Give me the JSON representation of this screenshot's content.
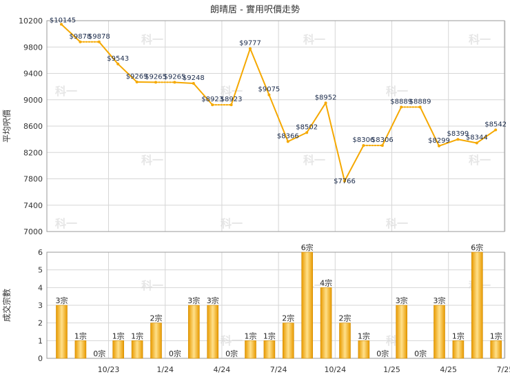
{
  "chart_data": [
    {
      "type": "line",
      "title": "朗晴居 - 實用呎價走勢",
      "ylabel": "平均呎價",
      "ylim": [
        7000,
        10200
      ],
      "yticks": [
        7000,
        7400,
        7800,
        8200,
        8600,
        9000,
        9400,
        9800,
        10200
      ],
      "grid": true,
      "series": [
        {
          "values": [
            10145,
            9878,
            9878,
            9543,
            9269,
            9265,
            9265,
            9248,
            8923,
            8923,
            9777,
            9075,
            8366,
            8502,
            8952,
            7766,
            8306,
            8306,
            8889,
            8889,
            8299,
            8399,
            8344,
            8542
          ],
          "labels": [
            "$10145",
            "$9878",
            "$9878",
            "$9543",
            "$9269",
            "$9265",
            "$9265",
            "$9248",
            "$8923",
            "$8923",
            "$9777",
            "$9075",
            "$8366",
            "$8502",
            "$8952",
            "$7766",
            "$8306",
            "$8306",
            "$8889",
            "$8889",
            "$8299",
            "$8399",
            "$8344",
            "$8542"
          ],
          "color": "#f5a800"
        }
      ]
    },
    {
      "type": "bar",
      "ylabel": "成交宗數",
      "ylim": [
        0,
        6
      ],
      "yticks": [
        0,
        1,
        2,
        3,
        4,
        5,
        6
      ],
      "categories": [
        "10/23",
        "1/24",
        "4/24",
        "7/24",
        "10/24",
        "1/25",
        "4/25",
        "7/25"
      ],
      "values": [
        3,
        1,
        0,
        1,
        1,
        2,
        0,
        3,
        3,
        0,
        1,
        1,
        2,
        6,
        4,
        2,
        1,
        0,
        3,
        0,
        3,
        1,
        6,
        1
      ],
      "labels": [
        "3宗",
        "1宗",
        "0宗",
        "1宗",
        "1宗",
        "2宗",
        "0宗",
        "3宗",
        "3宗",
        "0宗",
        "1宗",
        "1宗",
        "2宗",
        "6宗",
        "4宗",
        "2宗",
        "1宗",
        "0宗",
        "3宗",
        "0宗",
        "3宗",
        "1宗",
        "6宗",
        "1宗"
      ],
      "color": "#f5b020"
    }
  ],
  "watermark": "科一"
}
